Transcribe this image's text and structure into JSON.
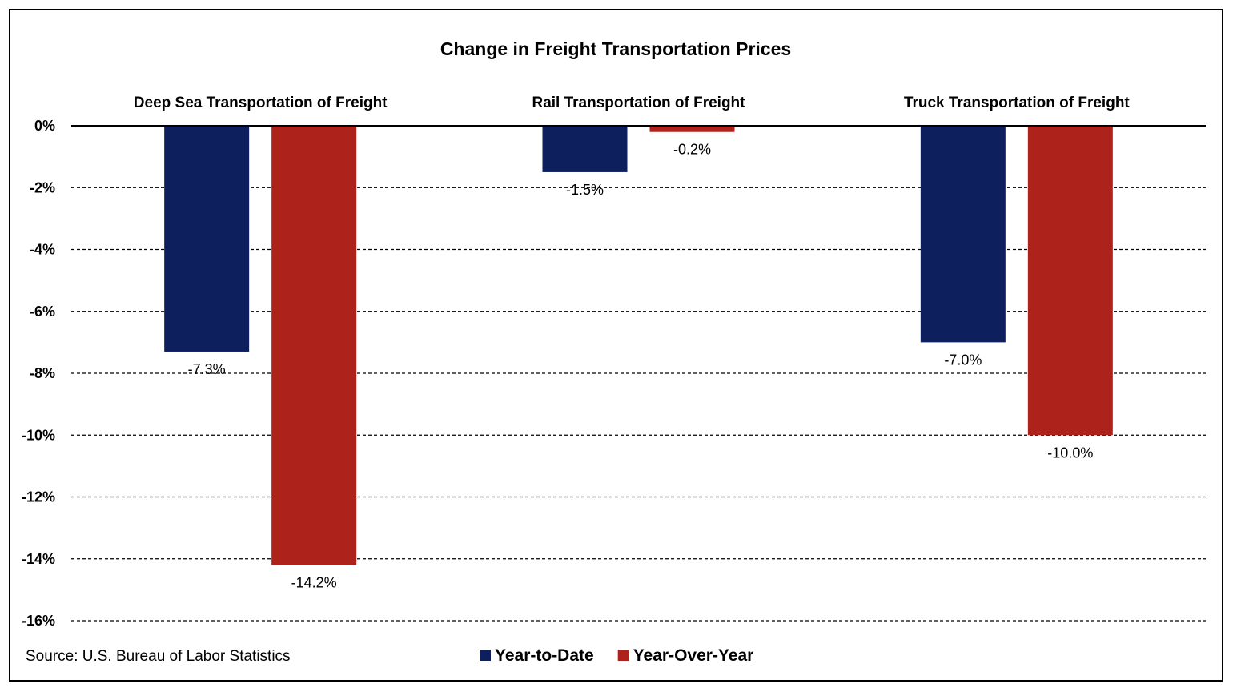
{
  "chart_data": {
    "type": "bar",
    "title": "Change in Freight Transportation Prices",
    "categories": [
      "Deep Sea Transportation of Freight",
      "Rail Transportation of Freight",
      "Truck Transportation of Freight"
    ],
    "series": [
      {
        "name": "Year-to-Date",
        "color": "#0d1f5c",
        "values": [
          -7.3,
          -1.5,
          -7.0
        ],
        "labels": [
          "-7.3%",
          "-1.5%",
          "-7.0%"
        ]
      },
      {
        "name": "Year-Over-Year",
        "color": "#ad231b",
        "values": [
          -14.2,
          -0.2,
          -10.0
        ],
        "labels": [
          "-14.2%",
          "-0.2%",
          "-10.0%"
        ]
      }
    ],
    "ylim": [
      -16,
      0
    ],
    "yticks": [
      "0%",
      "-2%",
      "-4%",
      "-6%",
      "-8%",
      "-10%",
      "-12%",
      "-14%",
      "-16%"
    ],
    "grid": "dashed horizontal",
    "legend": "bottom-center",
    "source": "Source: U.S. Bureau of Labor Statistics"
  }
}
